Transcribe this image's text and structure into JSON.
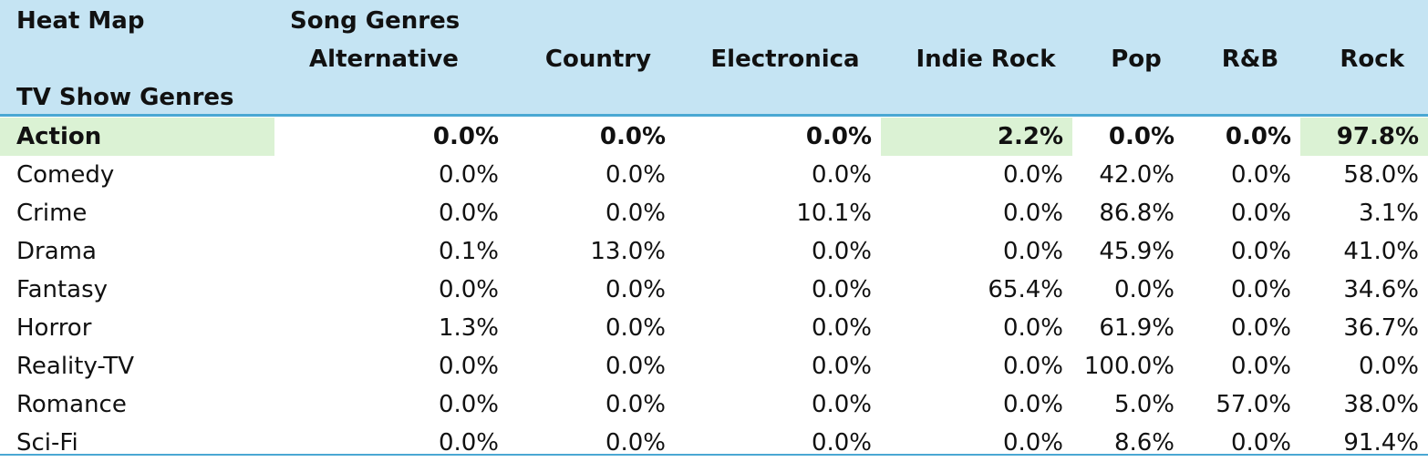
{
  "title": "Heat Map",
  "column_group_label": "Song Genres",
  "row_group_label": "TV Show Genres",
  "columns": [
    "Alternative",
    "Country",
    "Electronica",
    "Indie Rock",
    "Pop",
    "R&B",
    "Rock"
  ],
  "rows": [
    {
      "label": "Action",
      "values": [
        "0.0%",
        "0.0%",
        "0.0%",
        "2.2%",
        "0.0%",
        "0.0%",
        "97.8%"
      ]
    },
    {
      "label": "Comedy",
      "values": [
        "0.0%",
        "0.0%",
        "0.0%",
        "0.0%",
        "42.0%",
        "0.0%",
        "58.0%"
      ]
    },
    {
      "label": "Crime",
      "values": [
        "0.0%",
        "0.0%",
        "10.1%",
        "0.0%",
        "86.8%",
        "0.0%",
        "3.1%"
      ]
    },
    {
      "label": "Drama",
      "values": [
        "0.1%",
        "13.0%",
        "0.0%",
        "0.0%",
        "45.9%",
        "0.0%",
        "41.0%"
      ]
    },
    {
      "label": "Fantasy",
      "values": [
        "0.0%",
        "0.0%",
        "0.0%",
        "65.4%",
        "0.0%",
        "0.0%",
        "34.6%"
      ]
    },
    {
      "label": "Horror",
      "values": [
        "1.3%",
        "0.0%",
        "0.0%",
        "0.0%",
        "61.9%",
        "0.0%",
        "36.7%"
      ]
    },
    {
      "label": "Reality-TV",
      "values": [
        "0.0%",
        "0.0%",
        "0.0%",
        "0.0%",
        "100.0%",
        "0.0%",
        "0.0%"
      ]
    },
    {
      "label": "Romance",
      "values": [
        "0.0%",
        "0.0%",
        "0.0%",
        "0.0%",
        "5.0%",
        "57.0%",
        "38.0%"
      ]
    },
    {
      "label": "Sci-Fi",
      "values": [
        "0.0%",
        "0.0%",
        "0.0%",
        "0.0%",
        "8.6%",
        "0.0%",
        "91.4%"
      ]
    }
  ],
  "highlight_color": "#dbf2d4",
  "header_color": "#c5e4f3",
  "rule_color": "#4aa8d3"
}
